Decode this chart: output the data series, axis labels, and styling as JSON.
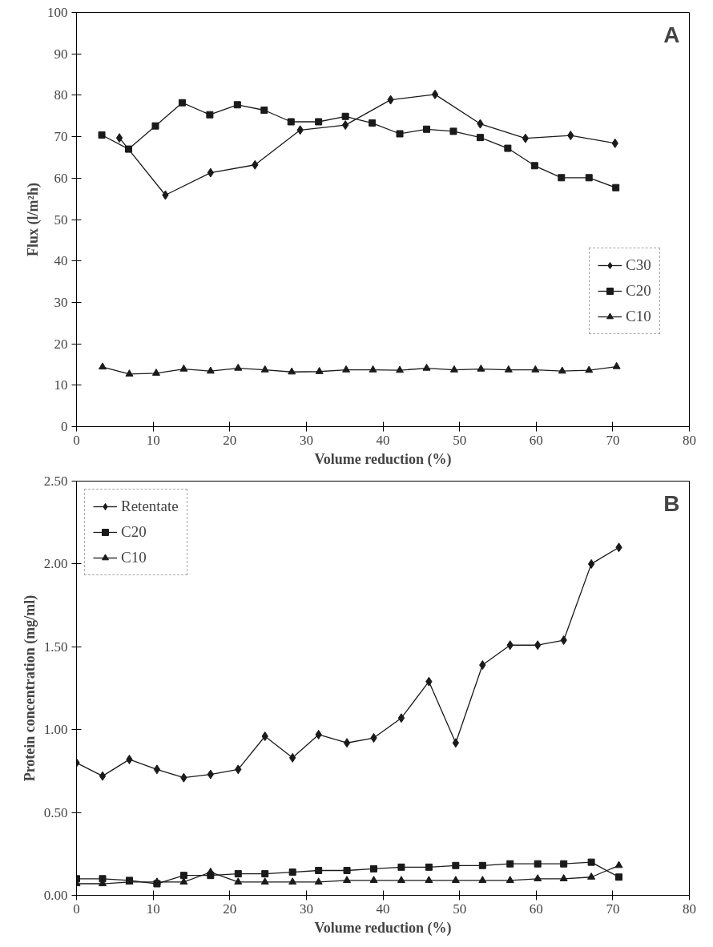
{
  "chart_data": [
    {
      "type": "line",
      "xlabel": "Volume reduction (%)",
      "ylabel": "Flux (l/m²h)",
      "annotations": [
        "A"
      ],
      "xlim": [
        0,
        80
      ],
      "ylim": [
        0,
        100
      ],
      "xticks": [
        0,
        10,
        20,
        30,
        40,
        50,
        60,
        70,
        80
      ],
      "yticks": [
        0,
        10,
        20,
        30,
        40,
        50,
        60,
        70,
        80,
        90,
        100
      ],
      "legend": "right",
      "grid": false,
      "line_style": "solid",
      "series": [
        {
          "name": "C30",
          "color": "#1a1a1a",
          "marker": "diamond",
          "x": [
            5.6,
            11.6,
            17.5,
            23.3,
            29.2,
            35.1,
            41.0,
            46.8,
            52.7,
            58.6,
            64.5,
            70.3
          ],
          "values": [
            69.7,
            55.9,
            61.3,
            63.2,
            71.6,
            72.8,
            78.9,
            80.2,
            73.1,
            69.6,
            70.3,
            68.4
          ]
        },
        {
          "name": "C20",
          "color": "#1a1a1a",
          "marker": "square",
          "x": [
            3.3,
            6.8,
            10.3,
            13.8,
            17.4,
            21.0,
            24.5,
            28.0,
            31.6,
            35.1,
            38.6,
            42.2,
            45.7,
            49.2,
            52.7,
            56.3,
            59.8,
            63.3,
            66.9,
            70.4
          ],
          "values": [
            70.4,
            67.0,
            72.6,
            78.2,
            75.3,
            77.7,
            76.4,
            73.6,
            73.6,
            74.9,
            73.3,
            70.7,
            71.8,
            71.3,
            69.8,
            67.2,
            63.0,
            60.1,
            60.1,
            57.7
          ]
        },
        {
          "name": "C10",
          "color": "#1a1a1a",
          "marker": "triangle",
          "x": [
            3.4,
            6.9,
            10.4,
            14.0,
            17.5,
            21.1,
            24.6,
            28.1,
            31.7,
            35.2,
            38.7,
            42.2,
            45.7,
            49.3,
            52.8,
            56.4,
            59.9,
            63.4,
            66.9,
            70.5
          ],
          "values": [
            14.4,
            12.7,
            12.9,
            13.9,
            13.4,
            14.1,
            13.7,
            13.2,
            13.3,
            13.7,
            13.7,
            13.6,
            14.1,
            13.7,
            13.9,
            13.7,
            13.7,
            13.4,
            13.6,
            14.5
          ]
        }
      ]
    },
    {
      "type": "line",
      "xlabel": "Volume reduction (%)",
      "ylabel": "Protein concentration (mg/ml)",
      "annotations": [
        "B"
      ],
      "xlim": [
        0,
        80
      ],
      "ylim": [
        0,
        2.5
      ],
      "xticks": [
        0,
        10,
        20,
        30,
        40,
        50,
        60,
        70,
        80
      ],
      "yticks": [
        {
          "value": 0,
          "label": "0.00"
        },
        {
          "value": 0.5,
          "label": "0.50"
        },
        {
          "value": 1,
          "label": "1.00"
        },
        {
          "value": 1.5,
          "label": "1.50"
        },
        {
          "value": 2,
          "label": "2.00"
        },
        {
          "value": 2.5,
          "label": "2.50"
        }
      ],
      "legend": "top left",
      "grid": false,
      "line_style": "solid",
      "series": [
        {
          "name": "Retentate",
          "color": "#1a1a1a",
          "marker": "diamond",
          "x": [
            0,
            3.4,
            6.9,
            10.5,
            14.0,
            17.5,
            21.1,
            24.6,
            28.2,
            31.6,
            35.3,
            38.8,
            42.4,
            46.0,
            49.5,
            53.0,
            56.6,
            60.2,
            63.6,
            67.2,
            70.8
          ],
          "values": [
            0.8,
            0.72,
            0.82,
            0.76,
            0.71,
            0.73,
            0.76,
            0.96,
            0.83,
            0.97,
            0.92,
            0.95,
            1.07,
            1.29,
            0.92,
            1.39,
            1.51,
            1.51,
            1.54,
            2.0,
            2.1
          ]
        },
        {
          "name": "C20",
          "color": "#1a1a1a",
          "marker": "square",
          "x": [
            0,
            3.4,
            6.9,
            10.5,
            14.0,
            17.5,
            21.1,
            24.6,
            28.2,
            31.6,
            35.3,
            38.8,
            42.4,
            46.0,
            49.5,
            53.0,
            56.6,
            60.2,
            63.6,
            67.2,
            70.8
          ],
          "values": [
            0.1,
            0.1,
            0.09,
            0.07,
            0.12,
            0.12,
            0.13,
            0.13,
            0.14,
            0.15,
            0.15,
            0.16,
            0.17,
            0.17,
            0.18,
            0.18,
            0.19,
            0.19,
            0.19,
            0.2,
            0.11
          ]
        },
        {
          "name": "C10",
          "color": "#1a1a1a",
          "marker": "triangle",
          "x": [
            0,
            3.4,
            6.9,
            10.5,
            14.0,
            17.5,
            21.1,
            24.6,
            28.2,
            31.6,
            35.3,
            38.8,
            42.4,
            46.0,
            49.5,
            53.0,
            56.6,
            60.2,
            63.6,
            67.2,
            70.8
          ],
          "values": [
            0.07,
            0.07,
            0.08,
            0.08,
            0.08,
            0.14,
            0.08,
            0.08,
            0.08,
            0.08,
            0.09,
            0.09,
            0.09,
            0.09,
            0.09,
            0.09,
            0.09,
            0.1,
            0.1,
            0.11,
            0.18
          ]
        }
      ]
    }
  ]
}
